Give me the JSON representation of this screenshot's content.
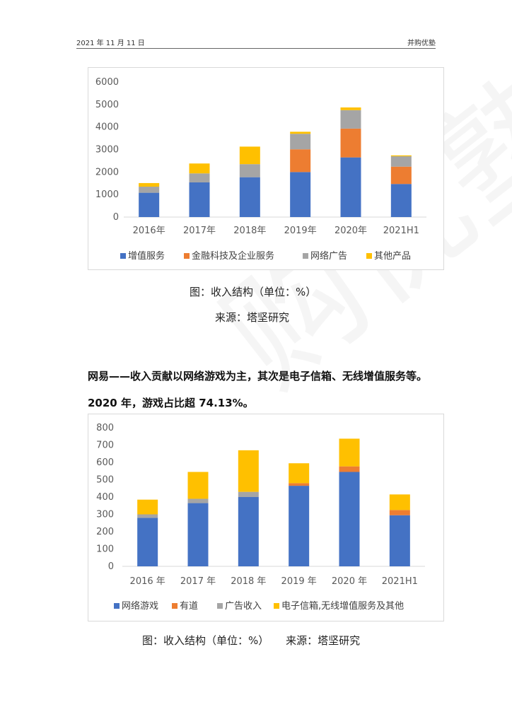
{
  "header": {
    "date": "2021 年 11 月 11 日",
    "org": "并购优塾"
  },
  "section1": {
    "caption": "图：收入结构（单位：%）",
    "source": "来源：塔坚研究"
  },
  "section2": {
    "paragraph": "网易——收入贡献以网络游戏为主，其次是电子信箱、无线增值服务等。2020 年，游戏占比超 74.13%。",
    "caption": "图：收入结构（单位：%）     来源：塔坚研究"
  },
  "watermark": "购优塾",
  "chart_data": [
    {
      "type": "bar",
      "stacked": true,
      "categories": [
        "2016年",
        "2017年",
        "2018年",
        "2019年",
        "2020年",
        "2021H1"
      ],
      "series": [
        {
          "name": "增值服务",
          "color": "#4472C4",
          "values": [
            1080,
            1540,
            1770,
            2000,
            2650,
            1470
          ]
        },
        {
          "name": "金融科技及企业服务",
          "color": "#ED7D31",
          "values": [
            0,
            0,
            0,
            1010,
            1280,
            770
          ]
        },
        {
          "name": "网络广告",
          "color": "#A5A5A5",
          "values": [
            270,
            400,
            580,
            690,
            820,
            460
          ]
        },
        {
          "name": "其他产品",
          "color": "#FFC000",
          "values": [
            160,
            440,
            780,
            90,
            120,
            40
          ]
        }
      ],
      "yticks": [
        0,
        1000,
        2000,
        3000,
        4000,
        5000,
        6000
      ],
      "ylim": [
        0,
        6000
      ],
      "legend_position": "bottom",
      "grid": false
    },
    {
      "type": "bar",
      "stacked": true,
      "categories": [
        "2016 年",
        "2017 年",
        "2018 年",
        "2019 年",
        "2020 年",
        "2021H1"
      ],
      "series": [
        {
          "name": "网络游戏",
          "color": "#4472C4",
          "values": [
            280,
            365,
            400,
            465,
            545,
            295
          ]
        },
        {
          "name": "有道",
          "color": "#ED7D31",
          "values": [
            0,
            0,
            0,
            15,
            32,
            30
          ]
        },
        {
          "name": "广告收入",
          "color": "#A5A5A5",
          "values": [
            20,
            25,
            30,
            0,
            0,
            0
          ]
        },
        {
          "name": "电子信箱,无线增值服务及其他",
          "color": "#FFC000",
          "values": [
            85,
            155,
            240,
            115,
            160,
            90
          ]
        }
      ],
      "yticks": [
        0,
        100,
        200,
        300,
        400,
        500,
        600,
        700,
        800
      ],
      "ylim": [
        0,
        800
      ],
      "legend_position": "bottom",
      "grid": false
    }
  ]
}
